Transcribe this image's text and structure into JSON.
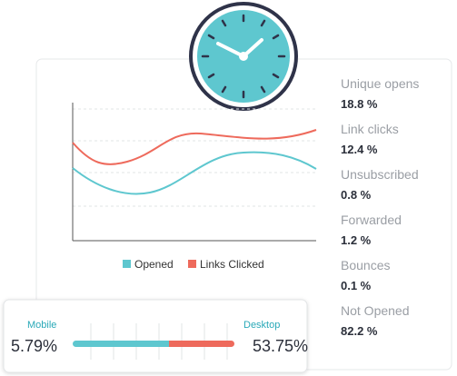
{
  "stats": [
    {
      "label": "Unique opens",
      "value": "18.8 %"
    },
    {
      "label": "Link clicks",
      "value": "12.4 %"
    },
    {
      "label": "Unsubscribed",
      "value": "0.8 %"
    },
    {
      "label": "Forwarded",
      "value": "1.2 %"
    },
    {
      "label": "Bounces",
      "value": "0.1 %"
    },
    {
      "label": "Not Opened",
      "value": "82.2 %"
    }
  ],
  "legend": [
    "Opened",
    "Links Clicked"
  ],
  "devices": {
    "mobile": {
      "label": "Mobile",
      "value": "5.79%"
    },
    "desktop": {
      "label": "Desktop",
      "value": "53.75%"
    }
  }
}
